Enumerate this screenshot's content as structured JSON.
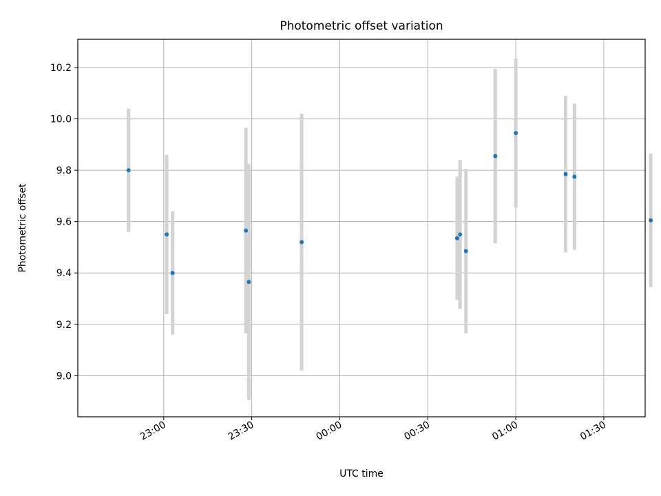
{
  "chart_data": {
    "type": "scatter",
    "title": "Photometric offset variation",
    "xlabel": "UTC time",
    "ylabel": "Photometric offset",
    "x_axis": {
      "type": "time",
      "ticks": [
        "23:00",
        "23:30",
        "00:00",
        "00:30",
        "01:00",
        "01:30"
      ]
    },
    "ylim": [
      8.84,
      10.31
    ],
    "y_ticks": [
      9.0,
      9.2,
      9.4,
      9.6,
      9.8,
      10.0,
      10.2
    ],
    "y_tick_labels": [
      "9.0",
      "9.2",
      "9.4",
      "9.6",
      "9.8",
      "10.0",
      "10.2"
    ],
    "grid": true,
    "marker_color": "#1f77b4",
    "errorbar_color": "#d3d3d3",
    "points": [
      {
        "x": "22:48",
        "y": 9.8,
        "yerr": 0.24
      },
      {
        "x": "23:01",
        "y": 9.55,
        "yerr": 0.31
      },
      {
        "x": "23:03",
        "y": 9.4,
        "yerr": 0.24
      },
      {
        "x": "23:28",
        "y": 9.565,
        "yerr": 0.4
      },
      {
        "x": "23:29",
        "y": 9.365,
        "yerr": 0.46
      },
      {
        "x": "23:47",
        "y": 9.52,
        "yerr": 0.5
      },
      {
        "x": "00:40",
        "y": 9.535,
        "yerr": 0.24
      },
      {
        "x": "00:41",
        "y": 9.55,
        "yerr": 0.29
      },
      {
        "x": "00:43",
        "y": 9.485,
        "yerr": 0.32
      },
      {
        "x": "00:53",
        "y": 9.855,
        "yerr": 0.34
      },
      {
        "x": "01:00",
        "y": 9.945,
        "yerr": 0.29
      },
      {
        "x": "01:17",
        "y": 9.785,
        "yerr": 0.305
      },
      {
        "x": "01:20",
        "y": 9.775,
        "yerr": 0.285
      },
      {
        "x": "01:46",
        "y": 9.605,
        "yerr": 0.26
      }
    ]
  }
}
